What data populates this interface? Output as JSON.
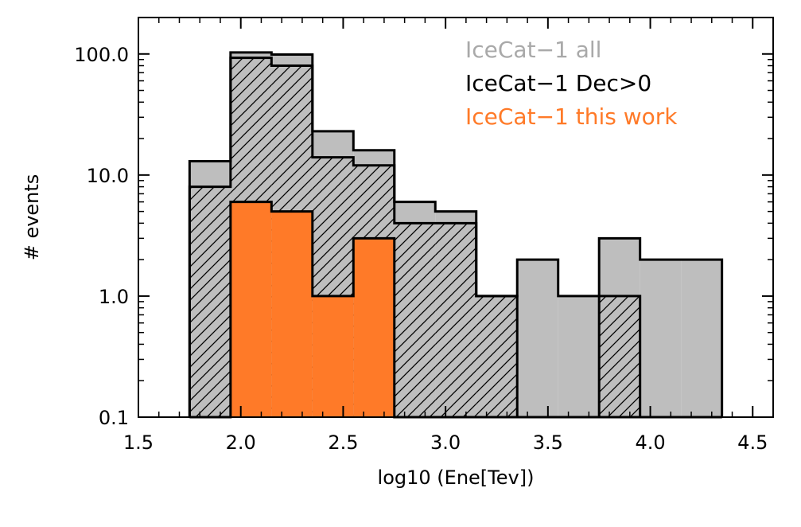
{
  "chart_data": {
    "type": "histogram",
    "xlabel": "log10 (Ene[Tev])",
    "ylabel": "# events",
    "xlim": [
      1.5,
      4.6
    ],
    "ylim": [
      0.1,
      200
    ],
    "yscale": "log",
    "xticks": [
      1.5,
      2.0,
      2.5,
      3.0,
      3.5,
      4.0,
      4.5
    ],
    "xtick_labels": [
      "1.5",
      "2.0",
      "2.5",
      "3.0",
      "3.5",
      "4.0",
      "4.5"
    ],
    "yticks": [
      0.1,
      1.0,
      10.0,
      100.0
    ],
    "ytick_labels": [
      "0.1",
      "1.0",
      "10.0",
      "100.0"
    ],
    "bin_width": 0.2,
    "series": [
      {
        "name": "IceCat−1 all",
        "color": "#bebebe",
        "style": "solid",
        "bins": [
          1.75,
          1.95,
          2.15,
          2.35,
          2.55,
          2.75,
          2.95,
          3.15,
          3.35,
          3.55,
          3.75,
          3.95,
          4.15
        ],
        "values": [
          13,
          103,
          99,
          23,
          16,
          6,
          5,
          1,
          2,
          1,
          3,
          2,
          2
        ]
      },
      {
        "name": "IceCat−1 Dec>0",
        "color": "#000000",
        "style": "hatched",
        "bins": [
          1.75,
          1.95,
          2.15,
          2.35,
          2.55,
          2.75,
          2.95,
          3.15,
          3.35,
          3.55,
          3.75,
          3.95,
          4.15
        ],
        "values": [
          8,
          93,
          80,
          14,
          12,
          4,
          4,
          1,
          0,
          0,
          1,
          0,
          0
        ]
      },
      {
        "name": "IceCat−1 this work",
        "color": "#ff7a28",
        "style": "solid",
        "bins": [
          1.75,
          1.95,
          2.15,
          2.35,
          2.55,
          2.75,
          2.95,
          3.15,
          3.35,
          3.55,
          3.75,
          3.95,
          4.15
        ],
        "values": [
          0,
          6,
          5,
          1,
          3,
          0,
          0,
          0,
          0,
          0,
          0,
          0,
          0
        ]
      }
    ],
    "legend": [
      {
        "label": "IceCat−1 all",
        "color": "#a9a9a9"
      },
      {
        "label": "IceCat−1 Dec>0",
        "color": "#000000"
      },
      {
        "label": "IceCat−1 this work",
        "color": "#ff7a28"
      }
    ],
    "legend_position": "top-right"
  }
}
